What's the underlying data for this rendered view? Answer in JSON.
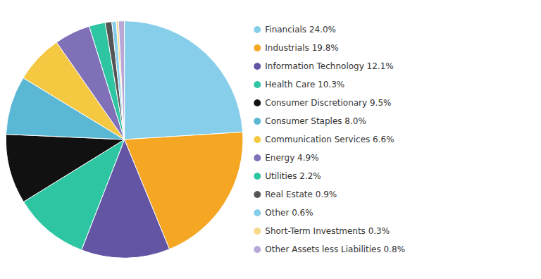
{
  "chart_data": {
    "type": "pie",
    "categories": [
      "Financials 24.0%",
      "Industrials 19.8%",
      "Information Technology 12.1%",
      "Health Care 10.3%",
      "Consumer Discretionary 9.5%",
      "Consumer Staples 8.0%",
      "Communication Services 6.6%",
      "Energy 4.9%",
      "Utilities 2.2%",
      "Real Estate 0.9%",
      "Other 0.6%",
      "Short-Term Investments 0.3%",
      "Other Assets less Liabilities 0.8%"
    ],
    "values": [
      24.0,
      19.8,
      12.1,
      10.3,
      9.5,
      8.0,
      6.6,
      4.9,
      2.2,
      0.9,
      0.6,
      0.3,
      0.8
    ],
    "colors": [
      "#87CEEB",
      "#F5A623",
      "#6355A4",
      "#2DC5A2",
      "#111111",
      "#5BB8D4",
      "#F5C842",
      "#8070B8",
      "#2DC5A2",
      "#555555",
      "#87CEEB",
      "#F5D888",
      "#B8A8D8"
    ],
    "legend": "right"
  }
}
